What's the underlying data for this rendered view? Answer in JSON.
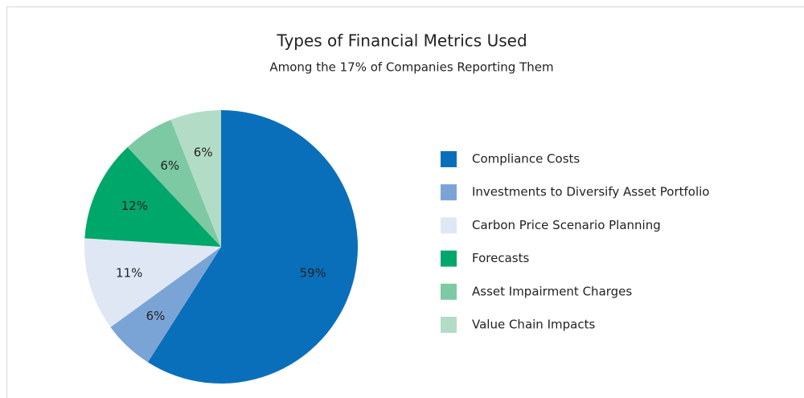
{
  "chart_data": {
    "type": "pie",
    "title": "Types of Financial Metrics Used",
    "subtitle": "Among the 17% of Companies Reporting Them",
    "categories": [
      "Compliance Costs",
      "Investments to Diversify Asset Portfolio",
      "Carbon Price Scenario Planning",
      "Forecasts",
      "Asset Impairment Charges",
      "Value Chain Impacts"
    ],
    "values": [
      59,
      6,
      11,
      12,
      6,
      6
    ],
    "value_labels": [
      "59%",
      "6%",
      "11%",
      "12%",
      "6%",
      "6%"
    ],
    "colors": [
      "#0a6fbb",
      "#7ba4d6",
      "#dfe7f4",
      "#00a76a",
      "#7dc9a4",
      "#b2dcc6"
    ],
    "legend": "right"
  }
}
